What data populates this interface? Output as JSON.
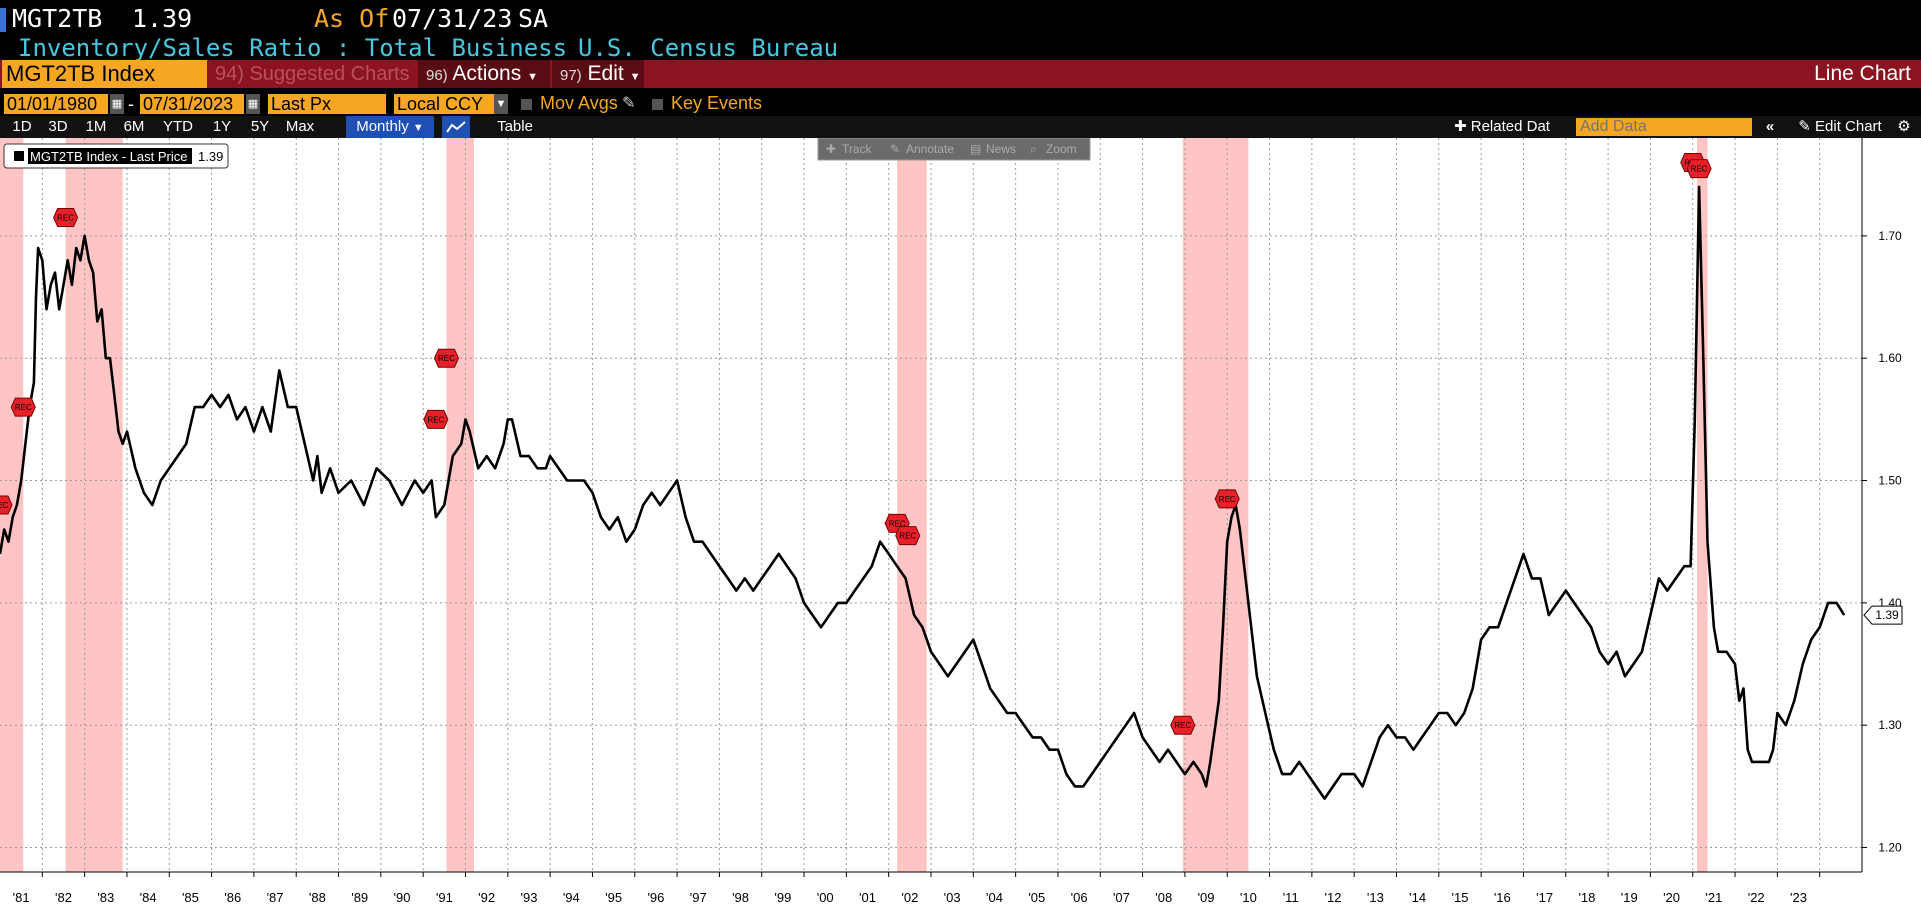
{
  "header": {
    "ticker": "MGT2TB",
    "last": "1.39",
    "as_of_label": "As Of",
    "as_of_date": "07/31/23",
    "adjustment": "SA",
    "description": "Inventory/Sales Ratio : Total Business",
    "source": "U.S. Census Bureau"
  },
  "toolbar": {
    "security": "MGT2TB Index",
    "suggested_charts": "94) Suggested Charts",
    "actions_num": "96)",
    "actions": "Actions",
    "edit_num": "97)",
    "edit": "Edit",
    "chart_type": "Line Chart",
    "start_date": "01/01/1980",
    "end_date": "07/31/2023",
    "price_field": "Last Px",
    "currency": "Local CCY",
    "mov_avgs": "Mov Avgs",
    "key_events": "Key Events",
    "ranges": [
      "1D",
      "3D",
      "1M",
      "6M",
      "YTD",
      "1Y",
      "5Y",
      "Max"
    ],
    "frequency": "Monthly",
    "table": "Table",
    "related_data": "Related Dat",
    "add_data_placeholder": "Add Data",
    "edit_chart": "Edit Chart",
    "overlay_tools": [
      "Track",
      "Annotate",
      "News",
      "Zoom"
    ]
  },
  "colors": {
    "line": "#000000",
    "recession": "#ffc4c4",
    "accent": "#f5a623",
    "bar": "#8b1420",
    "marker": "#e8202a"
  },
  "chart_data": {
    "type": "line",
    "title": "",
    "legend": {
      "label": "MGT2TB Index - Last Price",
      "value": "1.39",
      "placement": "top-left"
    },
    "y_axis": {
      "ticks": [
        "1.20",
        "1.30",
        "1.40",
        "1.50",
        "1.60",
        "1.70"
      ],
      "min": 1.18,
      "max": 1.78,
      "position": "right"
    },
    "x_axis": {
      "tick_labels": [
        "'81",
        "'82",
        "'83",
        "'84",
        "'85",
        "'86",
        "'87",
        "'88",
        "'89",
        "'90",
        "'91",
        "'92",
        "'93",
        "'94",
        "'95",
        "'96",
        "'97",
        "'98",
        "'99",
        "'00",
        "'01",
        "'02",
        "'03",
        "'04",
        "'05",
        "'06",
        "'07",
        "'08",
        "'09",
        "'10",
        "'11",
        "'12",
        "'13",
        "'14",
        "'15",
        "'16",
        "'17",
        "'18",
        "'19",
        "'20",
        "'21",
        "'22",
        "'23"
      ],
      "start": 1980.0,
      "end": 2024.0
    },
    "grid": true,
    "last_value_label": "1.39",
    "recession_bands": [
      [
        1980.0,
        1980.55
      ],
      [
        1981.55,
        1982.9
      ],
      [
        1990.55,
        1991.2
      ],
      [
        2001.2,
        2001.9
      ],
      [
        2007.95,
        2009.5
      ],
      [
        2020.1,
        2020.35
      ]
    ],
    "event_marker_label": "REC",
    "events": [
      [
        1980.0,
        1.48
      ],
      [
        1980.55,
        1.56
      ],
      [
        1981.55,
        1.715
      ],
      [
        1990.55,
        1.6
      ],
      [
        1990.3,
        1.55
      ],
      [
        2001.2,
        1.465
      ],
      [
        2001.45,
        1.455
      ],
      [
        2007.95,
        1.3
      ],
      [
        2009.0,
        1.485
      ],
      [
        2020.0,
        1.76
      ],
      [
        2020.15,
        1.755
      ]
    ],
    "series": [
      {
        "name": "MGT2TB Index - Last Price",
        "points": [
          [
            1980.0,
            1.44
          ],
          [
            1980.1,
            1.46
          ],
          [
            1980.2,
            1.45
          ],
          [
            1980.3,
            1.47
          ],
          [
            1980.4,
            1.48
          ],
          [
            1980.5,
            1.5
          ],
          [
            1980.6,
            1.53
          ],
          [
            1980.7,
            1.56
          ],
          [
            1980.8,
            1.58
          ],
          [
            1980.85,
            1.65
          ],
          [
            1980.9,
            1.69
          ],
          [
            1981.0,
            1.68
          ],
          [
            1981.1,
            1.64
          ],
          [
            1981.2,
            1.66
          ],
          [
            1981.3,
            1.67
          ],
          [
            1981.4,
            1.64
          ],
          [
            1981.5,
            1.66
          ],
          [
            1981.6,
            1.68
          ],
          [
            1981.7,
            1.66
          ],
          [
            1981.8,
            1.69
          ],
          [
            1981.9,
            1.68
          ],
          [
            1982.0,
            1.7
          ],
          [
            1982.1,
            1.68
          ],
          [
            1982.2,
            1.67
          ],
          [
            1982.3,
            1.63
          ],
          [
            1982.4,
            1.64
          ],
          [
            1982.5,
            1.6
          ],
          [
            1982.6,
            1.6
          ],
          [
            1982.7,
            1.57
          ],
          [
            1982.8,
            1.54
          ],
          [
            1982.9,
            1.53
          ],
          [
            1983.0,
            1.54
          ],
          [
            1983.2,
            1.51
          ],
          [
            1983.4,
            1.49
          ],
          [
            1983.6,
            1.48
          ],
          [
            1983.8,
            1.5
          ],
          [
            1984.0,
            1.51
          ],
          [
            1984.2,
            1.52
          ],
          [
            1984.4,
            1.53
          ],
          [
            1984.6,
            1.56
          ],
          [
            1984.8,
            1.56
          ],
          [
            1985.0,
            1.57
          ],
          [
            1985.2,
            1.56
          ],
          [
            1985.4,
            1.57
          ],
          [
            1985.6,
            1.55
          ],
          [
            1985.8,
            1.56
          ],
          [
            1986.0,
            1.54
          ],
          [
            1986.2,
            1.56
          ],
          [
            1986.4,
            1.54
          ],
          [
            1986.6,
            1.59
          ],
          [
            1986.8,
            1.56
          ],
          [
            1987.0,
            1.56
          ],
          [
            1987.2,
            1.53
          ],
          [
            1987.4,
            1.5
          ],
          [
            1987.5,
            1.52
          ],
          [
            1987.6,
            1.49
          ],
          [
            1987.8,
            1.51
          ],
          [
            1988.0,
            1.49
          ],
          [
            1988.3,
            1.5
          ],
          [
            1988.6,
            1.48
          ],
          [
            1988.9,
            1.51
          ],
          [
            1989.2,
            1.5
          ],
          [
            1989.5,
            1.48
          ],
          [
            1989.8,
            1.5
          ],
          [
            1990.0,
            1.49
          ],
          [
            1990.2,
            1.5
          ],
          [
            1990.3,
            1.47
          ],
          [
            1990.5,
            1.48
          ],
          [
            1990.7,
            1.52
          ],
          [
            1990.9,
            1.53
          ],
          [
            1991.0,
            1.55
          ],
          [
            1991.1,
            1.54
          ],
          [
            1991.3,
            1.51
          ],
          [
            1991.5,
            1.52
          ],
          [
            1991.7,
            1.51
          ],
          [
            1991.9,
            1.53
          ],
          [
            1992.0,
            1.55
          ],
          [
            1992.1,
            1.55
          ],
          [
            1992.3,
            1.52
          ],
          [
            1992.5,
            1.52
          ],
          [
            1992.7,
            1.51
          ],
          [
            1992.9,
            1.51
          ],
          [
            1993.0,
            1.52
          ],
          [
            1993.2,
            1.51
          ],
          [
            1993.4,
            1.5
          ],
          [
            1993.6,
            1.5
          ],
          [
            1993.8,
            1.5
          ],
          [
            1994.0,
            1.49
          ],
          [
            1994.2,
            1.47
          ],
          [
            1994.4,
            1.46
          ],
          [
            1994.6,
            1.47
          ],
          [
            1994.8,
            1.45
          ],
          [
            1995.0,
            1.46
          ],
          [
            1995.2,
            1.48
          ],
          [
            1995.4,
            1.49
          ],
          [
            1995.6,
            1.48
          ],
          [
            1995.8,
            1.49
          ],
          [
            1996.0,
            1.5
          ],
          [
            1996.2,
            1.47
          ],
          [
            1996.4,
            1.45
          ],
          [
            1996.6,
            1.45
          ],
          [
            1996.8,
            1.44
          ],
          [
            1997.0,
            1.43
          ],
          [
            1997.2,
            1.42
          ],
          [
            1997.4,
            1.41
          ],
          [
            1997.6,
            1.42
          ],
          [
            1997.8,
            1.41
          ],
          [
            1998.0,
            1.42
          ],
          [
            1998.2,
            1.43
          ],
          [
            1998.4,
            1.44
          ],
          [
            1998.6,
            1.43
          ],
          [
            1998.8,
            1.42
          ],
          [
            1999.0,
            1.4
          ],
          [
            1999.2,
            1.39
          ],
          [
            1999.4,
            1.38
          ],
          [
            1999.6,
            1.39
          ],
          [
            1999.8,
            1.4
          ],
          [
            2000.0,
            1.4
          ],
          [
            2000.2,
            1.41
          ],
          [
            2000.4,
            1.42
          ],
          [
            2000.6,
            1.43
          ],
          [
            2000.8,
            1.45
          ],
          [
            2001.0,
            1.44
          ],
          [
            2001.2,
            1.43
          ],
          [
            2001.4,
            1.42
          ],
          [
            2001.6,
            1.39
          ],
          [
            2001.8,
            1.38
          ],
          [
            2001.9,
            1.37
          ],
          [
            2002.0,
            1.36
          ],
          [
            2002.2,
            1.35
          ],
          [
            2002.4,
            1.34
          ],
          [
            2002.6,
            1.35
          ],
          [
            2002.8,
            1.36
          ],
          [
            2003.0,
            1.37
          ],
          [
            2003.2,
            1.35
          ],
          [
            2003.4,
            1.33
          ],
          [
            2003.6,
            1.32
          ],
          [
            2003.8,
            1.31
          ],
          [
            2004.0,
            1.31
          ],
          [
            2004.2,
            1.3
          ],
          [
            2004.4,
            1.29
          ],
          [
            2004.6,
            1.29
          ],
          [
            2004.8,
            1.28
          ],
          [
            2005.0,
            1.28
          ],
          [
            2005.2,
            1.26
          ],
          [
            2005.4,
            1.25
          ],
          [
            2005.6,
            1.25
          ],
          [
            2005.8,
            1.26
          ],
          [
            2006.0,
            1.27
          ],
          [
            2006.2,
            1.28
          ],
          [
            2006.4,
            1.29
          ],
          [
            2006.6,
            1.3
          ],
          [
            2006.8,
            1.31
          ],
          [
            2007.0,
            1.29
          ],
          [
            2007.2,
            1.28
          ],
          [
            2007.4,
            1.27
          ],
          [
            2007.6,
            1.28
          ],
          [
            2007.8,
            1.27
          ],
          [
            2008.0,
            1.26
          ],
          [
            2008.2,
            1.27
          ],
          [
            2008.4,
            1.26
          ],
          [
            2008.5,
            1.25
          ],
          [
            2008.6,
            1.27
          ],
          [
            2008.8,
            1.32
          ],
          [
            2008.9,
            1.38
          ],
          [
            2009.0,
            1.45
          ],
          [
            2009.1,
            1.47
          ],
          [
            2009.2,
            1.48
          ],
          [
            2009.3,
            1.46
          ],
          [
            2009.5,
            1.4
          ],
          [
            2009.7,
            1.34
          ],
          [
            2009.9,
            1.31
          ],
          [
            2010.1,
            1.28
          ],
          [
            2010.3,
            1.26
          ],
          [
            2010.5,
            1.26
          ],
          [
            2010.7,
            1.27
          ],
          [
            2010.9,
            1.26
          ],
          [
            2011.1,
            1.25
          ],
          [
            2011.3,
            1.24
          ],
          [
            2011.5,
            1.25
          ],
          [
            2011.7,
            1.26
          ],
          [
            2011.9,
            1.26
          ],
          [
            2012.0,
            1.26
          ],
          [
            2012.2,
            1.25
          ],
          [
            2012.4,
            1.27
          ],
          [
            2012.6,
            1.29
          ],
          [
            2012.8,
            1.3
          ],
          [
            2013.0,
            1.29
          ],
          [
            2013.2,
            1.29
          ],
          [
            2013.4,
            1.28
          ],
          [
            2013.6,
            1.29
          ],
          [
            2013.8,
            1.3
          ],
          [
            2014.0,
            1.31
          ],
          [
            2014.2,
            1.31
          ],
          [
            2014.4,
            1.3
          ],
          [
            2014.6,
            1.31
          ],
          [
            2014.8,
            1.33
          ],
          [
            2015.0,
            1.37
          ],
          [
            2015.2,
            1.38
          ],
          [
            2015.4,
            1.38
          ],
          [
            2015.6,
            1.4
          ],
          [
            2015.8,
            1.42
          ],
          [
            2016.0,
            1.44
          ],
          [
            2016.2,
            1.42
          ],
          [
            2016.4,
            1.42
          ],
          [
            2016.6,
            1.39
          ],
          [
            2016.8,
            1.4
          ],
          [
            2017.0,
            1.41
          ],
          [
            2017.2,
            1.4
          ],
          [
            2017.4,
            1.39
          ],
          [
            2017.6,
            1.38
          ],
          [
            2017.8,
            1.36
          ],
          [
            2018.0,
            1.35
          ],
          [
            2018.2,
            1.36
          ],
          [
            2018.4,
            1.34
          ],
          [
            2018.6,
            1.35
          ],
          [
            2018.8,
            1.36
          ],
          [
            2019.0,
            1.39
          ],
          [
            2019.2,
            1.42
          ],
          [
            2019.4,
            1.41
          ],
          [
            2019.6,
            1.42
          ],
          [
            2019.8,
            1.43
          ],
          [
            2019.95,
            1.43
          ],
          [
            2020.05,
            1.55
          ],
          [
            2020.15,
            1.74
          ],
          [
            2020.25,
            1.6
          ],
          [
            2020.35,
            1.45
          ],
          [
            2020.5,
            1.38
          ],
          [
            2020.6,
            1.36
          ],
          [
            2020.8,
            1.36
          ],
          [
            2021.0,
            1.35
          ],
          [
            2021.1,
            1.32
          ],
          [
            2021.2,
            1.33
          ],
          [
            2021.3,
            1.28
          ],
          [
            2021.4,
            1.27
          ],
          [
            2021.6,
            1.27
          ],
          [
            2021.8,
            1.27
          ],
          [
            2021.9,
            1.28
          ],
          [
            2022.0,
            1.31
          ],
          [
            2022.2,
            1.3
          ],
          [
            2022.4,
            1.32
          ],
          [
            2022.6,
            1.35
          ],
          [
            2022.8,
            1.37
          ],
          [
            2023.0,
            1.38
          ],
          [
            2023.2,
            1.4
          ],
          [
            2023.4,
            1.4
          ],
          [
            2023.58,
            1.39
          ]
        ]
      }
    ]
  }
}
